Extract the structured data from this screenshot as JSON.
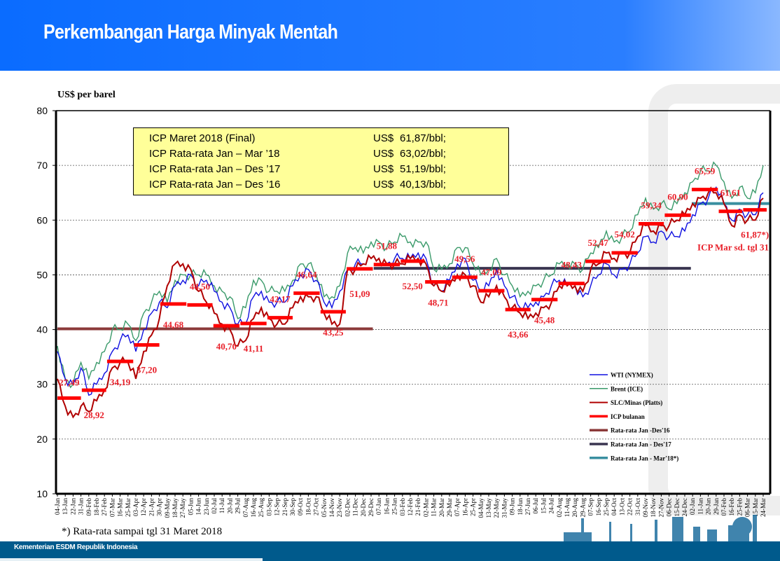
{
  "header": {
    "title": "Perkembangan Harga Minyak Mentah"
  },
  "info_box": [
    {
      "label": "ICP Maret 2018 (Final)",
      "currency": "US$",
      "value": "61,87/bbl;"
    },
    {
      "label": "ICP Rata-rata  Jan – Mar ’18",
      "currency": "US$",
      "value": "63,02/bbl;"
    },
    {
      "label": "ICP Rata-rata  Jan – Des ’17",
      "currency": "US$",
      "value": "51,19/bbl;"
    },
    {
      "label": "ICP Rata-rata  Jan – Des ’16",
      "currency": "US$",
      "value": "40,13/bbl;"
    }
  ],
  "footnote": "*) Rata-rata  sampai  tgl 31 Maret 2018",
  "footer": {
    "org": "Kementerian ESDM Republik Indonesia"
  },
  "colors": {
    "wti": "#1010e0",
    "brent": "#3a9a6a",
    "slc": "#b00000",
    "icp": "#ff0000",
    "avg16": "#8b3a3a",
    "avg17": "#3a3550",
    "avg18": "#3a8fa0"
  },
  "chart_data": {
    "type": "line",
    "ylabel": "US$ per barel",
    "ylim": [
      10,
      80
    ],
    "yticks": [
      "80",
      "70",
      "60",
      "50",
      "40",
      "30",
      "20",
      "10"
    ],
    "grid": true,
    "legend_position": "bottom-right",
    "start_date": "2016-01-04",
    "step_days": 9,
    "xtick_labels": [
      "04-Jan",
      "13-Jan",
      "22-Jan",
      "31-Jan",
      "09-Feb",
      "18-Feb",
      "27-Feb",
      "07-Mar",
      "16-Mar",
      "25-Mar",
      "03-Apr",
      "12-Apr",
      "21-Apr",
      "30-Apr",
      "09-May",
      "18-May",
      "27-May",
      "05-Jun",
      "14-Jun",
      "23-Jun",
      "02-Jul",
      "11-Jul",
      "20-Jul",
      "29-Jul",
      "07-Aug",
      "16-Aug",
      "25-Aug",
      "03-Sep",
      "12-Sep",
      "21-Sep",
      "30-Sep",
      "09-Oct",
      "18-Oct",
      "27-Oct",
      "05-Nov",
      "14-Nov",
      "23-Nov",
      "02-Dec",
      "11-Dec",
      "20-Dec",
      "29-Dec",
      "07-Jan",
      "16-Jan",
      "25-Jan",
      "03-Feb",
      "12-Feb",
      "21-Feb",
      "02-Mar",
      "11-Mar",
      "20-Mar",
      "29-Mar",
      "07-Apr",
      "16-Apr",
      "25-Apr",
      "04-May",
      "13-May",
      "22-May",
      "31-May",
      "09-Jun",
      "18-Jun",
      "27-Jun",
      "06-Jul",
      "15-Jul",
      "24-Jul",
      "02-Aug",
      "11-Aug",
      "20-Aug",
      "29-Aug",
      "07-Sep",
      "16-Sep",
      "25-Sep",
      "04-Oct",
      "13-Oct",
      "22-Oct",
      "31-Oct",
      "09-Nov",
      "18-Nov",
      "27-Nov",
      "06-Dec",
      "15-Dec",
      "24-Dec",
      "02-Jan",
      "11-Jan",
      "20-Jan",
      "29-Jan",
      "07-Feb",
      "16-Feb",
      "25-Feb",
      "06-Mar",
      "15-Mar",
      "24-Mar"
    ],
    "series": [
      {
        "name": "WTI (NYMEX)",
        "key": "wti",
        "values": [
          36,
          31,
          30,
          33,
          28,
          30,
          32,
          36,
          38,
          39,
          36,
          40,
          43,
          45,
          44,
          48,
          49,
          50,
          48,
          49,
          47,
          45,
          44,
          41,
          41,
          46,
          47,
          45,
          45,
          45,
          48,
          50,
          51,
          49,
          45,
          44,
          47,
          51,
          52,
          52,
          53,
          53,
          52,
          53,
          53,
          53,
          54,
          53,
          48,
          47,
          49,
          52,
          53,
          49,
          47,
          48,
          51,
          48,
          46,
          44,
          44,
          45,
          46,
          48,
          49,
          48,
          48,
          46,
          48,
          50,
          52,
          50,
          51,
          52,
          54,
          57,
          56,
          58,
          57,
          57,
          58,
          61,
          63,
          64,
          66,
          63,
          60,
          62,
          61,
          61,
          65
        ]
      },
      {
        "name": "Brent (ICE)",
        "key": "brent",
        "values": [
          37,
          31,
          30,
          34,
          31,
          34,
          36,
          40,
          40,
          41,
          38,
          43,
          45,
          47,
          45,
          49,
          50,
          50,
          50,
          50,
          48,
          47,
          46,
          42,
          44,
          49,
          49,
          47,
          47,
          47,
          49,
          52,
          52,
          50,
          46,
          46,
          48,
          54,
          55,
          54,
          56,
          56,
          55,
          56,
          57,
          56,
          56,
          56,
          51,
          51,
          52,
          55,
          55,
          52,
          50,
          51,
          53,
          50,
          48,
          46,
          47,
          48,
          49,
          50,
          52,
          52,
          52,
          51,
          54,
          55,
          58,
          56,
          57,
          58,
          61,
          64,
          62,
          63,
          62,
          63,
          65,
          67,
          69,
          69,
          70,
          67,
          64,
          66,
          64,
          65,
          70
        ]
      },
      {
        "name": "SLC/Minas (Platts)",
        "key": "slc",
        "values": [
          31,
          26,
          24,
          26,
          25,
          27,
          29,
          33,
          34,
          34,
          31,
          36,
          39,
          42,
          48,
          52,
          52,
          51,
          47,
          45,
          43,
          41,
          40,
          37,
          38,
          42,
          44,
          42,
          41,
          41,
          44,
          46,
          46,
          46,
          43,
          41,
          41,
          51,
          51,
          52,
          53,
          53,
          52,
          52,
          52,
          53,
          53,
          52,
          48,
          47,
          48,
          50,
          50,
          48,
          45,
          46,
          48,
          46,
          44,
          43,
          42,
          43,
          44,
          45,
          48,
          48,
          48,
          47,
          51,
          52,
          54,
          53,
          54,
          54,
          57,
          59,
          58,
          59,
          59,
          60,
          61,
          63,
          64,
          65,
          65,
          63,
          59,
          61,
          60,
          60,
          64
        ]
      }
    ],
    "icp_monthly": {
      "name": "ICP  bulanan",
      "months": [
        "2016-01",
        "2016-02",
        "2016-03",
        "2016-04",
        "2016-05",
        "2016-06",
        "2016-07",
        "2016-08",
        "2016-09",
        "2016-10",
        "2016-11",
        "2016-12",
        "2017-01",
        "2017-02",
        "2017-03",
        "2017-04",
        "2017-05",
        "2017-06",
        "2017-07",
        "2017-08",
        "2017-09",
        "2017-10",
        "2017-11",
        "2017-12",
        "2018-01",
        "2018-02",
        "2018-03"
      ],
      "values": [
        27.49,
        28.92,
        34.19,
        37.2,
        44.68,
        44.5,
        40.7,
        41.11,
        42.17,
        46.64,
        43.25,
        51.09,
        51.88,
        52.5,
        48.71,
        49.56,
        47.09,
        43.66,
        45.48,
        48.43,
        52.47,
        54.02,
        59.34,
        60.9,
        65.59,
        61.61,
        61.87
      ],
      "labels": [
        "27,49",
        "28,92",
        "34,19",
        "37,20",
        "44,68",
        "44,50",
        "40,70",
        "41,11",
        "42,17",
        "46,64",
        "43,25",
        "51,09",
        "51,88",
        "52,50",
        "48,71",
        "49,56",
        "47,09",
        "43,66",
        "45,48",
        "48,43",
        "52,47",
        "54,02",
        "59,34",
        "60,90",
        "65,59",
        "61,61",
        "61,87*)"
      ],
      "march_note": "ICP Mar sd. tgl 31"
    },
    "averages": [
      {
        "name": "Rata-rata Jan -Des'16",
        "key": "avg16",
        "value": 40.13,
        "from": "2016-01-04",
        "to": "2016-12-31"
      },
      {
        "name": "Rata-rata Jan - Des'17",
        "key": "avg17",
        "value": 51.19,
        "from": "2017-01-01",
        "to": "2017-12-31"
      },
      {
        "name": "Rata-rata Jan - Mar'18*)",
        "key": "avg18",
        "value": 63.02,
        "from": "2018-01-01",
        "to": "2018-03-31"
      }
    ]
  }
}
